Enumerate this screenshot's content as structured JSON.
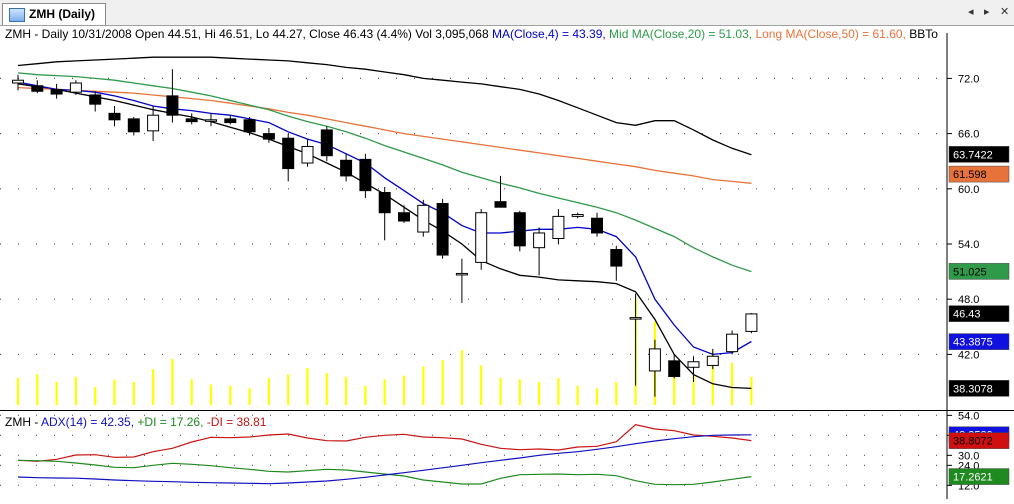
{
  "tab": {
    "title": "ZMH (Daily)",
    "icon": "chart-icon"
  },
  "nav": {
    "left": "◂",
    "right": "▸",
    "close": "✕"
  },
  "price_header": {
    "symbol": "ZMH - Daily 10/31/2008 Open 44.51, Hi 46.51, Lo 44.27, Close 46.43 (4.4%) Vol 3,095,068 ",
    "ma_short": "MA(Close,4) = 43.39, ",
    "ma_mid": "Mid MA(Close,20) = 51.03, ",
    "ma_long": "Long MA(Close,50) = 61.60, ",
    "tail": "BBTo"
  },
  "adx_header": {
    "name": "ZMH - ",
    "adx": "ADX(14) = 42.35, ",
    "pdi": "+DI = 17.26, ",
    "mdi": "-DI = 38.81"
  },
  "colors": {
    "ma_short": "#0000c8",
    "ma_mid": "#2e9a4a",
    "ma_long": "#e8733a",
    "volume": "#ffff00",
    "adx": "#1010c0",
    "pdi": "#1f8a1f",
    "mdi": "#c81414"
  },
  "chart_data": [
    {
      "type": "candlestick",
      "title": "ZMH - Daily 10/31/2008",
      "ylim": [
        36.5,
        76.5
      ],
      "yticks": [
        "72.0",
        "66.0",
        "60.0",
        "54.0",
        "48.0",
        "42.0"
      ],
      "ytick_values": [
        72,
        66,
        60,
        54,
        48,
        42
      ],
      "candles": [
        {
          "o": 71.5,
          "h": 72.4,
          "l": 70.7,
          "c": 71.8
        },
        {
          "o": 71.2,
          "h": 71.8,
          "l": 70.4,
          "c": 70.6
        },
        {
          "o": 70.8,
          "h": 71.4,
          "l": 69.8,
          "c": 70.3
        },
        {
          "o": 70.5,
          "h": 71.8,
          "l": 70.2,
          "c": 71.5
        },
        {
          "o": 70.2,
          "h": 70.6,
          "l": 68.4,
          "c": 69.2
        },
        {
          "o": 68.2,
          "h": 69.0,
          "l": 66.8,
          "c": 67.5
        },
        {
          "o": 67.6,
          "h": 67.8,
          "l": 65.8,
          "c": 66.2
        },
        {
          "o": 66.3,
          "h": 69.0,
          "l": 65.2,
          "c": 68.0
        },
        {
          "o": 70.1,
          "h": 73.0,
          "l": 67.2,
          "c": 68.0
        },
        {
          "o": 67.6,
          "h": 68.2,
          "l": 67.0,
          "c": 67.3
        },
        {
          "o": 67.4,
          "h": 68.2,
          "l": 66.8,
          "c": 67.5
        },
        {
          "o": 67.6,
          "h": 68.0,
          "l": 67.0,
          "c": 67.2
        },
        {
          "o": 67.5,
          "h": 67.8,
          "l": 65.8,
          "c": 66.2
        },
        {
          "o": 66.0,
          "h": 66.6,
          "l": 65.0,
          "c": 65.4
        },
        {
          "o": 65.5,
          "h": 66.0,
          "l": 60.8,
          "c": 62.2
        },
        {
          "o": 62.8,
          "h": 65.4,
          "l": 62.4,
          "c": 64.6
        },
        {
          "o": 66.4,
          "h": 66.8,
          "l": 63.0,
          "c": 63.6
        },
        {
          "o": 63.1,
          "h": 63.8,
          "l": 60.8,
          "c": 61.4
        },
        {
          "o": 63.2,
          "h": 63.8,
          "l": 59.0,
          "c": 59.8
        },
        {
          "o": 59.6,
          "h": 60.2,
          "l": 54.4,
          "c": 57.4
        },
        {
          "o": 57.4,
          "h": 58.2,
          "l": 56.3,
          "c": 56.5
        },
        {
          "o": 55.3,
          "h": 58.8,
          "l": 54.8,
          "c": 58.2
        },
        {
          "o": 58.4,
          "h": 58.9,
          "l": 52.4,
          "c": 52.8
        },
        {
          "o": 50.8,
          "h": 52.4,
          "l": 47.6,
          "c": 50.8
        },
        {
          "o": 52.0,
          "h": 57.8,
          "l": 51.2,
          "c": 57.4
        },
        {
          "o": 58.6,
          "h": 61.4,
          "l": 58.2,
          "c": 58.0
        },
        {
          "o": 57.4,
          "h": 57.6,
          "l": 53.2,
          "c": 53.8
        },
        {
          "o": 53.6,
          "h": 55.8,
          "l": 50.6,
          "c": 55.2
        },
        {
          "o": 54.6,
          "h": 57.8,
          "l": 54.0,
          "c": 57.0
        },
        {
          "o": 57.0,
          "h": 57.4,
          "l": 56.8,
          "c": 57.2
        },
        {
          "o": 56.8,
          "h": 57.4,
          "l": 54.8,
          "c": 55.2
        },
        {
          "o": 53.4,
          "h": 53.8,
          "l": 50.0,
          "c": 51.6
        },
        {
          "o": 46.0,
          "h": 48.6,
          "l": 38.6,
          "c": 46.0
        },
        {
          "o": 40.2,
          "h": 43.6,
          "l": 37.4,
          "c": 42.6
        },
        {
          "o": 41.3,
          "h": 42.0,
          "l": 39.4,
          "c": 39.6
        },
        {
          "o": 40.6,
          "h": 41.8,
          "l": 39.0,
          "c": 41.2
        },
        {
          "o": 40.8,
          "h": 42.6,
          "l": 40.4,
          "c": 41.8
        },
        {
          "o": 42.3,
          "h": 44.6,
          "l": 42.0,
          "c": 44.2
        },
        {
          "o": 44.5,
          "h": 46.5,
          "l": 44.3,
          "c": 46.4
        }
      ],
      "ma_short": [
        71.6,
        71.2,
        70.8,
        70.7,
        70.5,
        70.1,
        69.6,
        69.0,
        68.7,
        68.5,
        68.2,
        68.0,
        67.6,
        67.2,
        66.2,
        65.4,
        64.8,
        63.8,
        62.8,
        61.2,
        59.8,
        58.4,
        57.4,
        56.0,
        55.2,
        55.2,
        55.4,
        55.6,
        55.6,
        55.8,
        55.6,
        54.8,
        52.6,
        48.0,
        45.2,
        42.8,
        42.0,
        42.2,
        43.4
      ],
      "ma_mid": [
        72.6,
        72.4,
        72.3,
        72.2,
        72.0,
        71.8,
        71.5,
        71.2,
        70.9,
        70.5,
        70.1,
        69.6,
        69.1,
        68.6,
        67.9,
        67.3,
        66.8,
        66.2,
        65.5,
        64.7,
        64.0,
        63.3,
        62.6,
        61.8,
        61.2,
        60.6,
        60.1,
        59.5,
        59.0,
        58.5,
        58.0,
        57.4,
        56.6,
        55.7,
        54.8,
        53.6,
        52.6,
        51.7,
        51.0
      ],
      "ma_long": [
        71.0,
        70.9,
        70.8,
        70.7,
        70.6,
        70.5,
        70.4,
        70.2,
        70.0,
        69.8,
        69.6,
        69.3,
        69.0,
        68.7,
        68.3,
        68.0,
        67.6,
        67.2,
        66.8,
        66.4,
        66.0,
        65.7,
        65.4,
        65.1,
        64.8,
        64.5,
        64.2,
        63.9,
        63.6,
        63.3,
        63.0,
        62.7,
        62.4,
        62.0,
        61.7,
        61.4,
        61.0,
        60.8,
        60.6
      ],
      "bb_upper": [
        73.4,
        73.6,
        73.8,
        73.9,
        74.0,
        74.1,
        74.2,
        74.3,
        74.3,
        74.3,
        74.3,
        74.2,
        74.1,
        74.0,
        73.9,
        73.7,
        73.5,
        73.2,
        73.0,
        72.7,
        72.4,
        72.0,
        71.8,
        71.6,
        71.4,
        71.1,
        70.8,
        70.3,
        69.6,
        68.8,
        68.0,
        67.2,
        66.9,
        67.4,
        67.4,
        66.4,
        65.3,
        64.4,
        63.7
      ],
      "bb_lower": [
        71.4,
        71.1,
        70.8,
        70.4,
        70.0,
        69.6,
        69.1,
        68.6,
        68.2,
        67.8,
        67.3,
        66.7,
        66.1,
        65.4,
        64.6,
        63.8,
        62.8,
        61.8,
        60.6,
        59.4,
        58.0,
        56.6,
        55.4,
        54.0,
        52.2,
        51.3,
        50.6,
        50.4,
        50.1,
        50.0,
        49.9,
        49.7,
        48.8,
        45.8,
        42.0,
        39.8,
        38.8,
        38.4,
        38.3
      ],
      "volume": [
        0.42,
        0.48,
        0.36,
        0.44,
        0.28,
        0.4,
        0.36,
        0.56,
        0.72,
        0.4,
        0.32,
        0.3,
        0.26,
        0.42,
        0.48,
        0.58,
        0.5,
        0.44,
        0.3,
        0.4,
        0.46,
        0.6,
        0.7,
        0.86,
        0.62,
        0.42,
        0.4,
        0.36,
        0.42,
        0.3,
        0.26,
        0.36,
        1.65,
        1.3,
        0.52,
        0.46,
        0.84,
        0.66,
        0.44
      ],
      "last_values": {
        "bb_upper": "63.7422",
        "ma_long": "61.598",
        "ma_mid": "51.025",
        "close": "46.43",
        "ma_short": "43.3875",
        "bb_lower": "38.3078"
      }
    },
    {
      "type": "line",
      "title": "ZMH - ADX(14)",
      "ylim": [
        5,
        56
      ],
      "yticks": [
        "54.0",
        "42.0",
        "30.0",
        "24.0",
        "12.0"
      ],
      "ytick_values": [
        54,
        42,
        30,
        24,
        12
      ],
      "series": [
        {
          "name": "ADX(14)",
          "values": [
            17.0,
            16.6,
            16.4,
            16.3,
            15.8,
            15.2,
            14.8,
            14.4,
            14.2,
            13.8,
            13.6,
            13.4,
            13.2,
            13.0,
            13.4,
            14.0,
            14.6,
            15.6,
            16.8,
            18.2,
            19.6,
            21.0,
            22.5,
            24.0,
            25.6,
            27.0,
            28.4,
            30.0,
            31.2,
            32.2,
            33.6,
            35.2,
            37.0,
            38.6,
            40.0,
            41.2,
            42.0,
            42.2,
            42.35
          ]
        },
        {
          "name": "+DI",
          "values": [
            27.0,
            26.8,
            26.4,
            25.4,
            24.2,
            22.8,
            22.6,
            24.0,
            25.2,
            24.6,
            23.8,
            22.6,
            21.6,
            20.4,
            20.0,
            20.8,
            21.6,
            21.2,
            20.0,
            18.8,
            17.6,
            15.2,
            14.0,
            12.8,
            12.8,
            16.2,
            18.4,
            18.6,
            18.8,
            18.4,
            18.6,
            17.8,
            14.8,
            12.6,
            12.4,
            12.6,
            14.0,
            15.6,
            17.26
          ]
        },
        {
          "name": "-DI",
          "values": [
            27.0,
            26.4,
            27.6,
            30.2,
            30.4,
            28.8,
            29.0,
            32.2,
            34.2,
            38.0,
            40.8,
            40.6,
            41.0,
            42.2,
            42.8,
            40.4,
            38.8,
            38.6,
            40.8,
            42.0,
            42.6,
            41.0,
            40.6,
            39.8,
            36.6,
            34.2,
            33.4,
            33.8,
            33.2,
            35.0,
            35.4,
            38.2,
            48.4,
            45.8,
            44.8,
            42.2,
            41.4,
            40.4,
            38.81
          ]
        }
      ],
      "last_values": {
        "adx": "42.3529",
        "mdi": "38.8072",
        "pdi": "17.2621"
      }
    }
  ]
}
